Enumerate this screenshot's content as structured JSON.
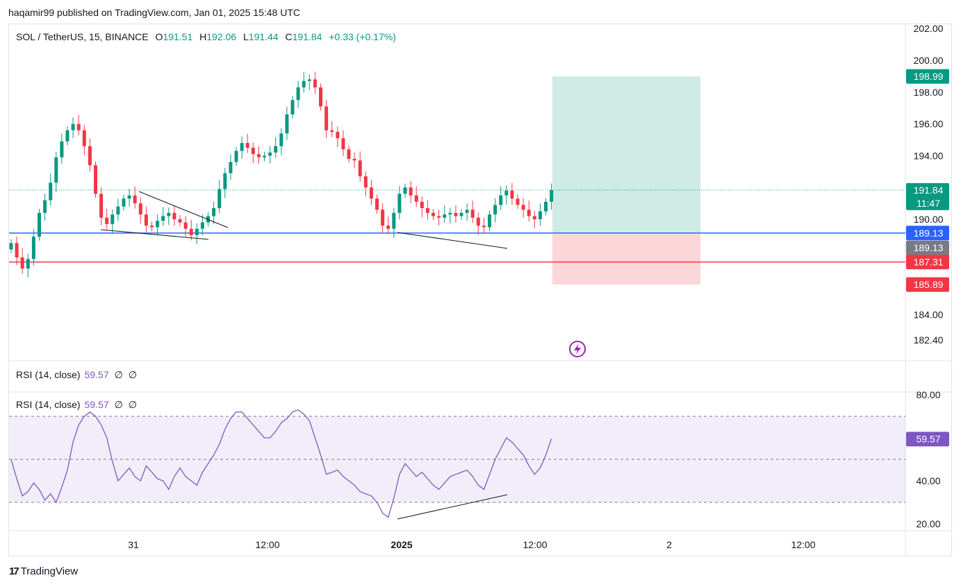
{
  "header": {
    "published": "haqamir99 published on TradingView.com, Jan 01, 2025 15:48 UTC"
  },
  "legend": {
    "symbol": "SOL / TetherUS, 15, BINANCE",
    "open_label": "O",
    "open": "191.51",
    "high_label": "H",
    "high": "192.06",
    "low_label": "L",
    "low": "191.44",
    "close_label": "C",
    "close": "191.84",
    "change": "+0.33 (+0.17%)"
  },
  "rsi_panel": {
    "label": "RSI (14, close)",
    "value": "59.57",
    "sym1": "∅",
    "sym2": "∅"
  },
  "footer": {
    "brand": "TradingView"
  },
  "colors": {
    "up": "#089981",
    "down": "#f23645",
    "rsi": "#7e57c2",
    "support": "#2962ff",
    "stop": "#f23645"
  },
  "chart_data": [
    {
      "type": "candlestick",
      "symbol": "SOL / TetherUS",
      "timeframe": "15",
      "x_ticks": [
        "31",
        "12:00",
        "2025",
        "12:00",
        "2",
        "12:00"
      ],
      "y_ticks": [
        "202.00",
        "200.00",
        "198.00",
        "196.00",
        "194.00",
        "190.00",
        "184.00",
        "182.40"
      ],
      "ylim": [
        182.4,
        202.0
      ],
      "close_path": [
        188.5,
        187.6,
        186.9,
        187.5,
        188.9,
        190.4,
        191.2,
        192.3,
        193.9,
        194.9,
        195.6,
        196.0,
        195.6,
        194.6,
        193.4,
        191.6,
        190.1,
        189.7,
        190.3,
        190.8,
        191.3,
        191.5,
        191.0,
        190.3,
        189.6,
        189.5,
        189.9,
        190.2,
        190.4,
        190.0,
        189.8,
        189.4,
        189.0,
        189.4,
        189.8,
        190.2,
        190.7,
        191.9,
        192.9,
        193.6,
        194.3,
        194.8,
        194.5,
        194.1,
        193.9,
        194.0,
        194.2,
        194.6,
        195.4,
        196.6,
        197.5,
        198.3,
        198.7,
        198.8,
        198.3,
        197.1,
        195.6,
        195.5,
        195.1,
        194.4,
        193.8,
        193.7,
        192.7,
        192.0,
        191.3,
        190.6,
        189.6,
        189.4,
        190.4,
        191.6,
        192.0,
        191.5,
        191.1,
        190.7,
        190.4,
        190.2,
        190.1,
        190.3,
        190.4,
        190.2,
        190.4,
        190.6,
        190.1,
        189.6,
        189.5,
        190.3,
        190.9,
        191.5,
        191.8,
        191.3,
        190.9,
        190.6,
        190.2,
        190.0,
        190.5,
        191.1,
        191.84
      ],
      "price_labels": [
        "198.99",
        "191.84",
        "11:47",
        "189.13",
        "189.13",
        "187.31",
        "185.89"
      ],
      "levels": {
        "take_profit": 198.99,
        "last": 191.84,
        "countdown": "11:47",
        "support": 189.13,
        "stop_level": 187.31,
        "stop_loss": 185.89
      }
    },
    {
      "type": "line",
      "name": "RSI (14, close)",
      "y_ticks": [
        "80.00",
        "40.00",
        "20.00"
      ],
      "ylim": [
        20,
        80
      ],
      "bands": [
        30,
        50,
        70
      ],
      "values": [
        50,
        41,
        33,
        35,
        39,
        36,
        31,
        34,
        30,
        37,
        45,
        58,
        66,
        70,
        72,
        70,
        66,
        60,
        49,
        40,
        43,
        46,
        42,
        40,
        47,
        44,
        41,
        40,
        36,
        42,
        46,
        42,
        40,
        38,
        44,
        48,
        52,
        57,
        64,
        69,
        72,
        72,
        69,
        66,
        63,
        60,
        60,
        63,
        67,
        69,
        72,
        73,
        71,
        68,
        60,
        52,
        43,
        44,
        45,
        42,
        40,
        38,
        35,
        34,
        33,
        30,
        25,
        23,
        32,
        43,
        48,
        45,
        42,
        44,
        41,
        38,
        36,
        39,
        42,
        43,
        44,
        45,
        42,
        38,
        36,
        43,
        50,
        55,
        60,
        58,
        55,
        52,
        47,
        43,
        46,
        52,
        59.57
      ],
      "last": 59.57
    }
  ]
}
